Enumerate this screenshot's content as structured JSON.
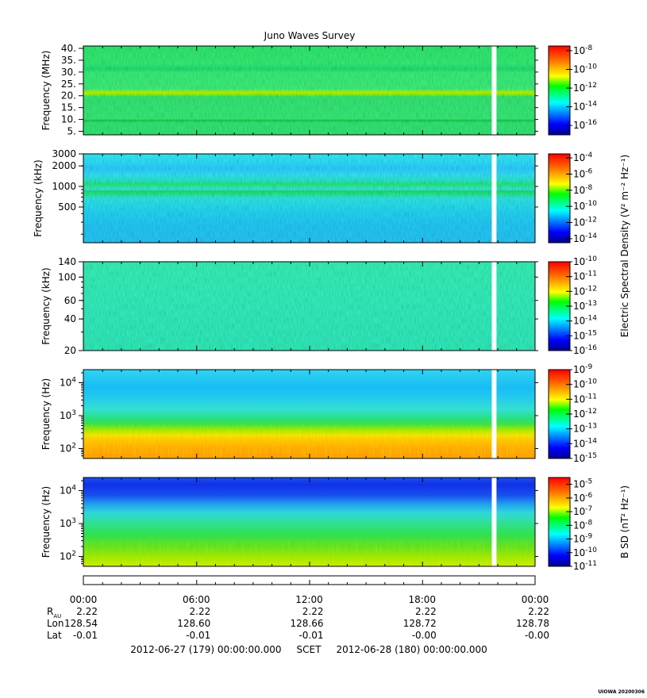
{
  "title": "Juno Waves Survey",
  "footer_tag": "UIOWA 20200306",
  "colorbar_unit_electric": "Electric Spectral Density (V² m⁻² Hz⁻¹)",
  "colorbar_unit_magnetic": "B SD (nT² Hz⁻¹)",
  "time_axis": {
    "ticks": [
      "00:00",
      "06:00",
      "12:00",
      "18:00",
      "00:00"
    ],
    "rows": [
      {
        "label": "R",
        "sub": "AU",
        "values": [
          "2.22",
          "2.22",
          "2.22",
          "2.22",
          "2.22"
        ]
      },
      {
        "label": "Lon",
        "sub": "",
        "values": [
          "128.54",
          "128.60",
          "128.66",
          "128.72",
          "128.78"
        ]
      },
      {
        "label": "Lat",
        "sub": "",
        "values": [
          "-0.01",
          "-0.01",
          "-0.01",
          "-0.00",
          "-0.00"
        ]
      }
    ],
    "range_text": "2012-06-27 (179) 00:00:00.000     SCET     2012-06-28 (180) 00:00:00.000"
  },
  "chart_data": [
    {
      "type": "heatmap",
      "ylabel": "Frequency (MHz)",
      "yscale": "linear",
      "ylim": [
        3.5,
        41
      ],
      "yticks": [
        {
          "v": 5,
          "l": "5."
        },
        {
          "v": 10,
          "l": "10."
        },
        {
          "v": 15,
          "l": "15."
        },
        {
          "v": 20,
          "l": "20."
        },
        {
          "v": 25,
          "l": "25."
        },
        {
          "v": 30,
          "l": "30."
        },
        {
          "v": 35,
          "l": "35."
        },
        {
          "v": 40,
          "l": "40."
        }
      ],
      "data_gap_hours": [
        21.7,
        21.95
      ],
      "bands": [
        9,
        21
      ],
      "colorbar": {
        "ticks": [
          {
            "e": "-8"
          },
          {
            "e": "-10"
          },
          {
            "e": "-12"
          },
          {
            "e": "-14"
          },
          {
            "e": "-16"
          }
        ],
        "range": [
          -17,
          -7.5
        ]
      }
    },
    {
      "type": "heatmap",
      "ylabel": "Frequency (kHz)",
      "yscale": "log",
      "ylim": [
        150,
        3000
      ],
      "yticks": [
        {
          "v": 500,
          "l": "500"
        },
        {
          "v": 1000,
          "l": "1000"
        },
        {
          "v": 2000,
          "l": "2000"
        },
        {
          "v": 3000,
          "l": "3000"
        }
      ],
      "data_gap_hours": [
        21.7,
        21.95
      ],
      "colorbar": {
        "ticks": [
          {
            "e": "-4"
          },
          {
            "e": "-6"
          },
          {
            "e": "-8"
          },
          {
            "e": "-10"
          },
          {
            "e": "-12"
          },
          {
            "e": "-14"
          }
        ],
        "range": [
          -14.5,
          -3.5
        ]
      }
    },
    {
      "type": "heatmap",
      "ylabel": "Frequency (kHz)",
      "yscale": "log",
      "ylim": [
        20,
        140
      ],
      "yticks": [
        {
          "v": 20,
          "l": "20"
        },
        {
          "v": 40,
          "l": "40"
        },
        {
          "v": 60,
          "l": "60"
        },
        {
          "v": 100,
          "l": "100"
        },
        {
          "v": 140,
          "l": "140"
        }
      ],
      "data_gap_hours": [
        21.7,
        21.95
      ],
      "colorbar": {
        "ticks": [
          {
            "e": "-10"
          },
          {
            "e": "-11"
          },
          {
            "e": "-12"
          },
          {
            "e": "-13"
          },
          {
            "e": "-14"
          },
          {
            "e": "-15"
          },
          {
            "e": "-16"
          }
        ],
        "range": [
          -16,
          -10
        ]
      }
    },
    {
      "type": "heatmap",
      "ylabel": "Frequency (Hz)",
      "yscale": "log",
      "ylim": [
        50,
        25000
      ],
      "yticks": [
        {
          "v": 100,
          "l": "10",
          "e": "2"
        },
        {
          "v": 1000,
          "l": "10",
          "e": "3"
        },
        {
          "v": 10000,
          "l": "10",
          "e": "4"
        }
      ],
      "data_gap_hours": [
        21.7,
        21.95
      ],
      "colorbar": {
        "ticks": [
          {
            "e": "-9"
          },
          {
            "e": "-10"
          },
          {
            "e": "-11"
          },
          {
            "e": "-12"
          },
          {
            "e": "-13"
          },
          {
            "e": "-14"
          },
          {
            "e": "-15"
          }
        ],
        "range": [
          -15,
          -9
        ]
      }
    },
    {
      "type": "heatmap",
      "ylabel": "Frequency (Hz)",
      "yscale": "log",
      "ylim": [
        50,
        25000
      ],
      "yticks": [
        {
          "v": 100,
          "l": "10",
          "e": "2"
        },
        {
          "v": 1000,
          "l": "10",
          "e": "3"
        },
        {
          "v": 10000,
          "l": "10",
          "e": "4"
        }
      ],
      "data_gap_hours": [
        21.7,
        21.95
      ],
      "colorbar": {
        "ticks": [
          {
            "e": "-5"
          },
          {
            "e": "-6"
          },
          {
            "e": "-7"
          },
          {
            "e": "-8"
          },
          {
            "e": "-9"
          },
          {
            "e": "-10"
          },
          {
            "e": "-11"
          }
        ],
        "range": [
          -11,
          -4.5
        ]
      }
    }
  ]
}
